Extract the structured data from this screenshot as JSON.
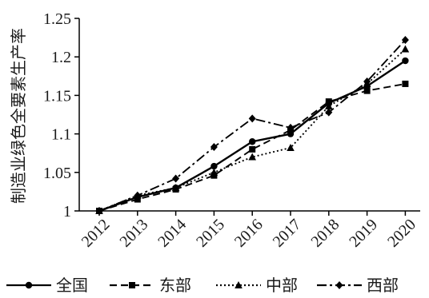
{
  "chart_data": {
    "type": "line",
    "title": "",
    "xlabel": "",
    "ylabel": "制造业绿色全要素生产率",
    "categories": [
      "2012",
      "2013",
      "2014",
      "2015",
      "2016",
      "2017",
      "2018",
      "2019",
      "2020"
    ],
    "yticks": [
      "1",
      "1.05",
      "1.1",
      "1.15",
      "1.2",
      "1.25"
    ],
    "ylim": [
      1,
      1.25
    ],
    "grid": false,
    "legend_position": "bottom",
    "series": [
      {
        "name": "全国",
        "values": [
          1.0,
          1.018,
          1.03,
          1.058,
          1.09,
          1.1,
          1.14,
          1.162,
          1.195
        ],
        "color": "#000000",
        "dash": "solid",
        "marker": "circle"
      },
      {
        "name": "东部",
        "values": [
          1.0,
          1.015,
          1.028,
          1.046,
          1.08,
          1.105,
          1.142,
          1.156,
          1.165
        ],
        "color": "#000000",
        "dash": "dash",
        "marker": "square"
      },
      {
        "name": "中部",
        "values": [
          1.0,
          1.02,
          1.03,
          1.05,
          1.07,
          1.082,
          1.136,
          1.165,
          1.21
        ],
        "color": "#000000",
        "dash": "dot",
        "marker": "triangle"
      },
      {
        "name": "西部",
        "values": [
          1.0,
          1.02,
          1.042,
          1.083,
          1.12,
          1.108,
          1.128,
          1.168,
          1.222
        ],
        "color": "#000000",
        "dash": "dashdot",
        "marker": "diamond"
      }
    ]
  }
}
